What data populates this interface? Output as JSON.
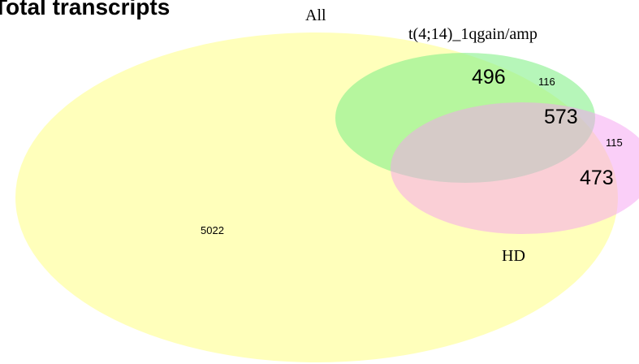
{
  "title": "Total transcripts",
  "sets": {
    "all": {
      "label": "All",
      "color": "#ffffa8"
    },
    "t414": {
      "label": "t(4;14)_1qgain/amp",
      "color": "#9af59a"
    },
    "hd": {
      "label": "HD",
      "color": "#f5a8f0"
    }
  },
  "regions": {
    "all_only": "5022",
    "t414_region": "496",
    "t414_only_outer": "116",
    "t414_hd_overlap": "573",
    "hd_only_outer": "115",
    "hd_region": "473"
  }
}
